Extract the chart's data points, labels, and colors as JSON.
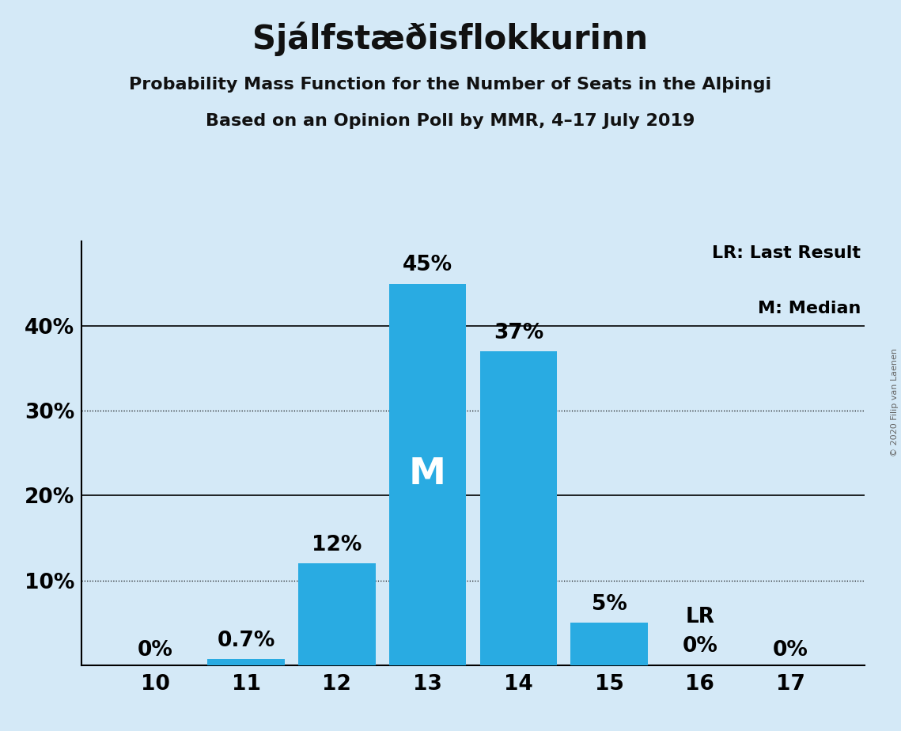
{
  "title": "Sjálfstæðisflokkurinn",
  "subtitle1": "Probability Mass Function for the Number of Seats in the Alþingi",
  "subtitle2": "Based on an Opinion Poll by MMR, 4–17 July 2019",
  "copyright": "© 2020 Filip van Laenen",
  "categories": [
    10,
    11,
    12,
    13,
    14,
    15,
    16,
    17
  ],
  "values": [
    0.0,
    0.7,
    12.0,
    45.0,
    37.0,
    5.0,
    0.0,
    0.0
  ],
  "labels": [
    "0%",
    "0.7%",
    "12%",
    "45%",
    "37%",
    "5%",
    "0%",
    "0%"
  ],
  "bar_color": "#29ABE2",
  "median_bar": 13,
  "lr_bar": 16,
  "median_label": "M",
  "lr_label": "LR",
  "legend_lr": "LR: Last Result",
  "legend_m": "M: Median",
  "background_color": "#D4E9F7",
  "ylim": [
    0,
    50
  ],
  "ytick_positions": [
    0,
    10,
    20,
    30,
    40
  ],
  "ytick_labels": [
    "",
    "10%",
    "20%",
    "30%",
    "40%"
  ],
  "solid_gridlines": [
    10,
    20,
    40
  ],
  "dotted_gridlines": [
    10,
    30
  ],
  "title_fontsize": 30,
  "subtitle_fontsize": 16,
  "label_fontsize": 19,
  "tick_fontsize": 19,
  "legend_fontsize": 16,
  "median_fontsize": 34
}
